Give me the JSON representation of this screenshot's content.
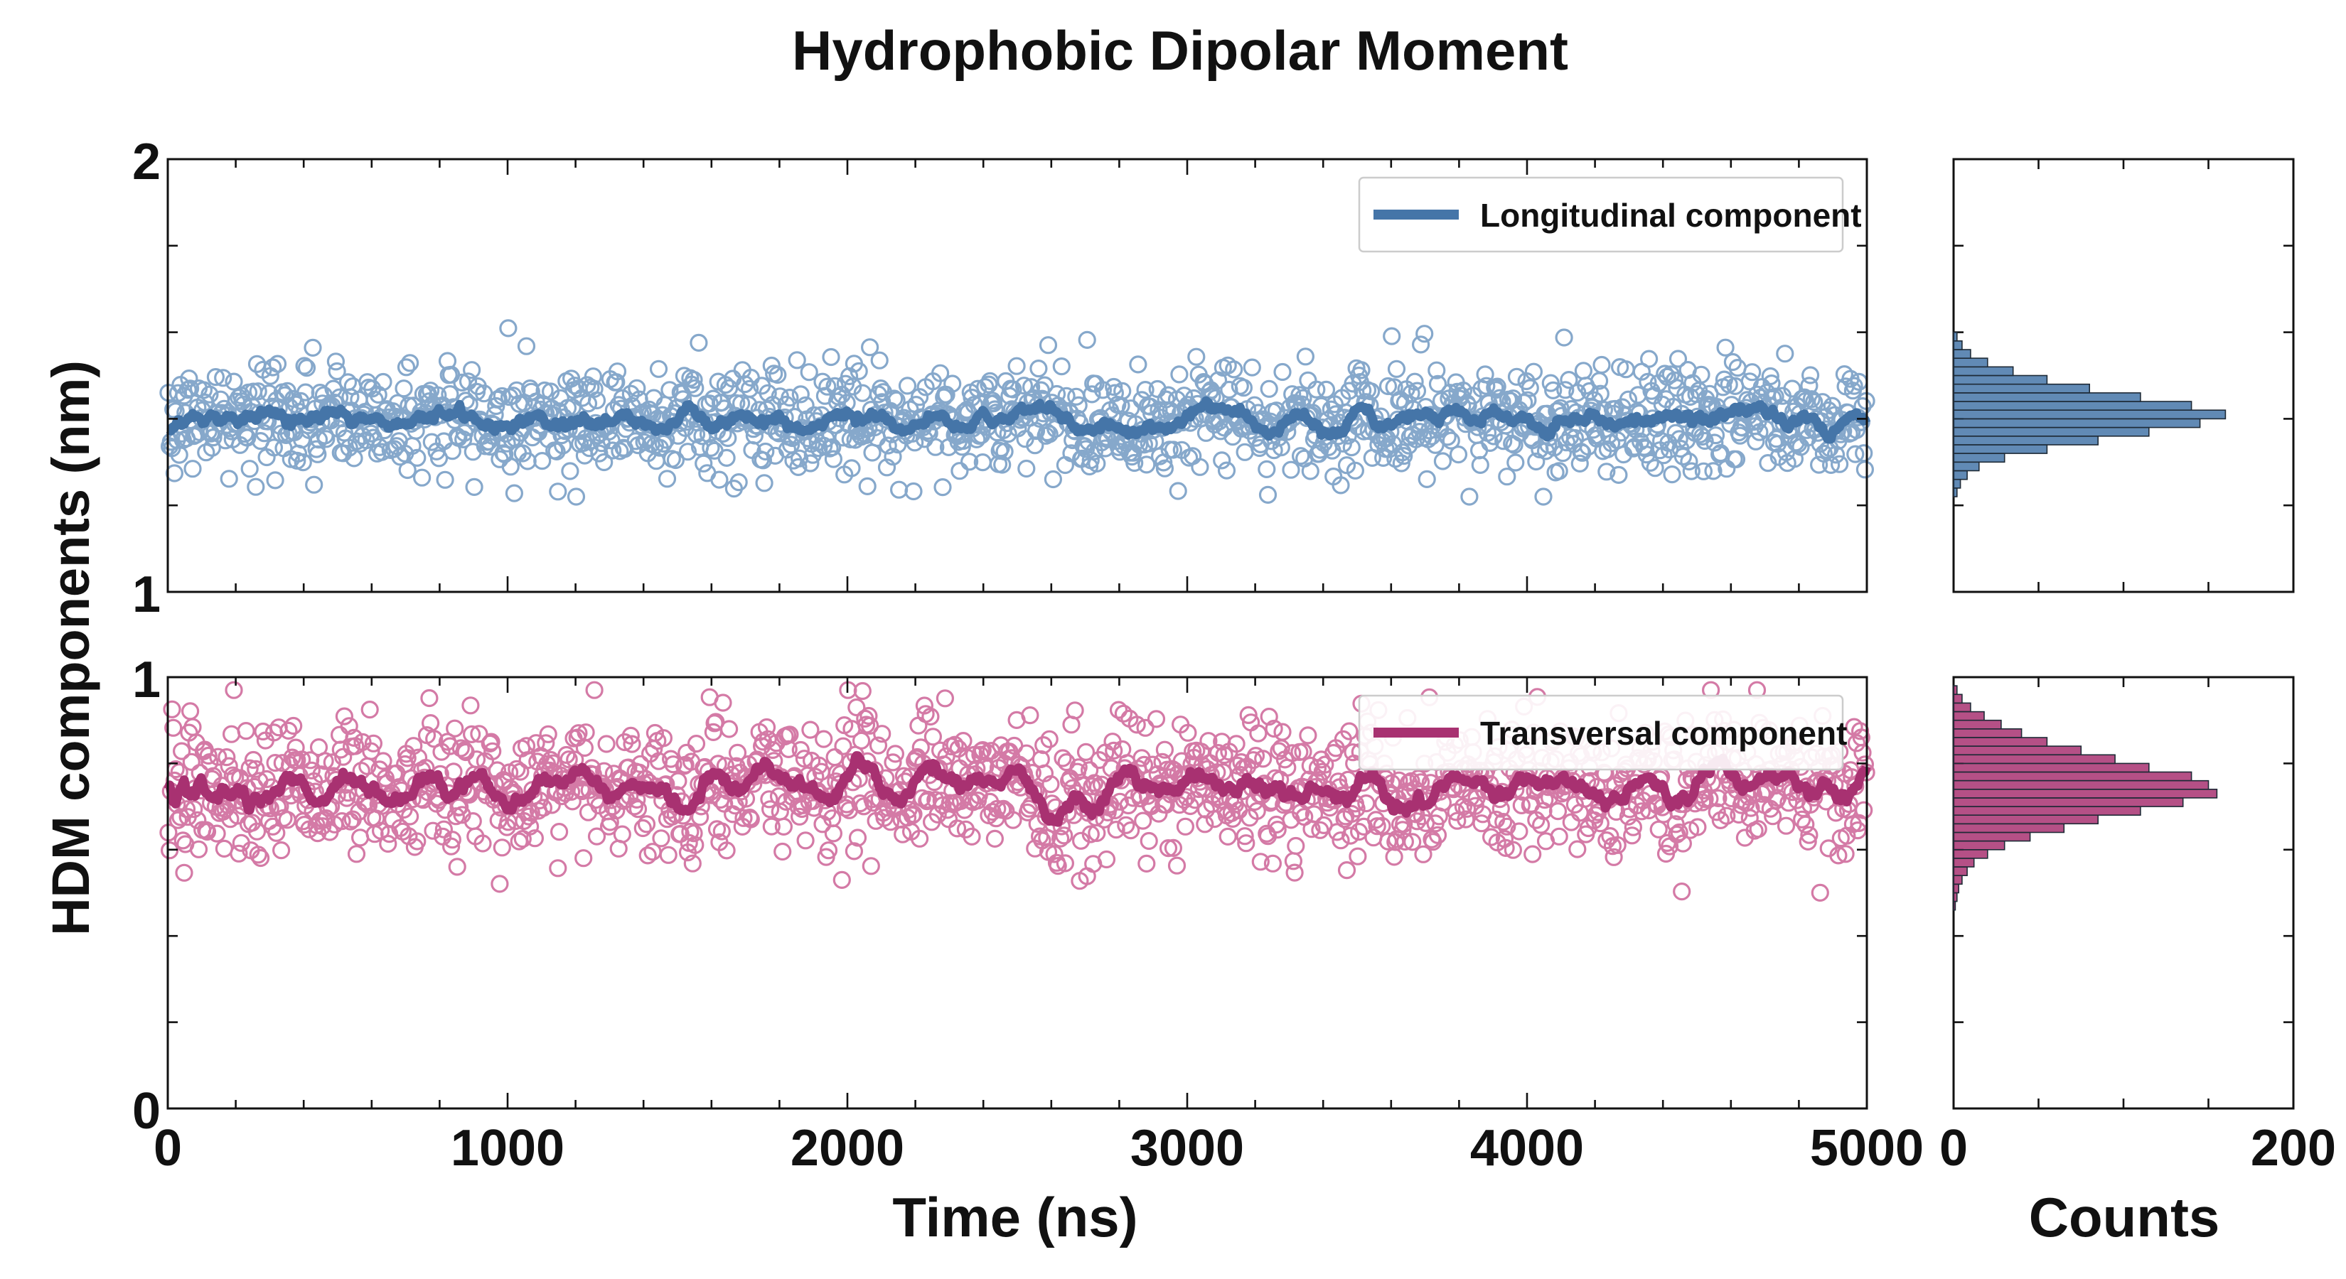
{
  "chart_data": {
    "title": "Hydrophobic Dipolar Moment",
    "ylabel": "HDM components (nm)",
    "xlabel": "Time (ns)",
    "hist_xlabel": "Counts",
    "time_ticks": [
      "0",
      "1000",
      "2000",
      "3000",
      "4000",
      "5000"
    ],
    "count_ticks": [
      "0",
      "200"
    ],
    "xlim": [
      0,
      5000
    ],
    "count_xlim": [
      0,
      200
    ],
    "panels": [
      {
        "name": "longitudinal",
        "type": "scatter",
        "legend_label": "Longitudinal component",
        "legend_position": "top-right",
        "color": "#4575a8",
        "marker_color": "#86a8cb",
        "ylim": [
          1,
          2
        ],
        "y_tick_labels": [
          "1",
          "2"
        ],
        "mean": 1.4,
        "spread": 0.065,
        "y_min_observed": 1.22,
        "y_max_observed": 1.61,
        "histogram": {
          "bin_centers": [
            1.23,
            1.25,
            1.27,
            1.29,
            1.31,
            1.33,
            1.35,
            1.37,
            1.39,
            1.41,
            1.43,
            1.45,
            1.47,
            1.49,
            1.51,
            1.53,
            1.55,
            1.57,
            1.59
          ],
          "counts": [
            2,
            4,
            8,
            15,
            30,
            55,
            85,
            115,
            145,
            160,
            140,
            110,
            80,
            55,
            35,
            20,
            10,
            5,
            2
          ]
        }
      },
      {
        "name": "transversal",
        "type": "scatter",
        "legend_label": "Transversal component",
        "legend_position": "top-right",
        "color": "#a83171",
        "marker_color": "#d47aa6",
        "ylim": [
          0,
          1
        ],
        "y_tick_labels": [
          "0",
          "1"
        ],
        "mean": 0.745,
        "spread": 0.08,
        "y_min_observed": 0.45,
        "y_max_observed": 0.97,
        "histogram": {
          "bin_centers": [
            0.47,
            0.49,
            0.51,
            0.53,
            0.55,
            0.57,
            0.59,
            0.61,
            0.63,
            0.65,
            0.67,
            0.69,
            0.71,
            0.73,
            0.75,
            0.77,
            0.79,
            0.81,
            0.83,
            0.85,
            0.87,
            0.89,
            0.91,
            0.93,
            0.95,
            0.97
          ],
          "counts": [
            1,
            2,
            3,
            5,
            8,
            12,
            20,
            30,
            45,
            65,
            85,
            110,
            135,
            155,
            150,
            140,
            115,
            95,
            75,
            55,
            40,
            28,
            18,
            10,
            5,
            2
          ]
        }
      }
    ]
  }
}
